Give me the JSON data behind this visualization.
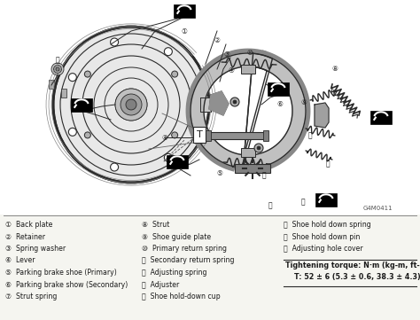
{
  "bg_color": "#f5f5f0",
  "fig_width": 4.74,
  "fig_height": 3.61,
  "dpi": 100,
  "legend_col1": [
    [
      "①",
      "Back plate"
    ],
    [
      "②",
      "Retainer"
    ],
    [
      "③",
      "Spring washer"
    ],
    [
      "④",
      "Lever"
    ],
    [
      "⑤",
      "Parking brake shoe (Primary)"
    ],
    [
      "⑥",
      "Parking brake show (Secondary)"
    ],
    [
      "⑦",
      "Strut spring"
    ]
  ],
  "legend_col2": [
    [
      "⑧",
      "Strut"
    ],
    [
      "⑨",
      "Shoe guide plate"
    ],
    [
      "⑩",
      "Primary return spring"
    ],
    [
      "⑪",
      "Secondary return spring"
    ],
    [
      "⑫",
      "Adjusting spring"
    ],
    [
      "⑬",
      "Adjuster"
    ],
    [
      "⑭",
      "Shoe hold-down cup"
    ]
  ],
  "legend_col3": [
    [
      "⑮",
      "Shoe hold down spring"
    ],
    [
      "⑯",
      "Shoe hold down pin"
    ],
    [
      "⑰",
      "Adjusting hole cover"
    ]
  ],
  "torque_title": "Tightening torque: N·m (kg-m, ft-lb)",
  "torque_value": "T: 52 ± 6 (5.3 ± 0.6, 38.3 ± 4.3)",
  "part_id": "G4M0411",
  "lc": "#2a2a2a",
  "tc": "#1a1a1a",
  "diagram_bg": "#ffffff"
}
